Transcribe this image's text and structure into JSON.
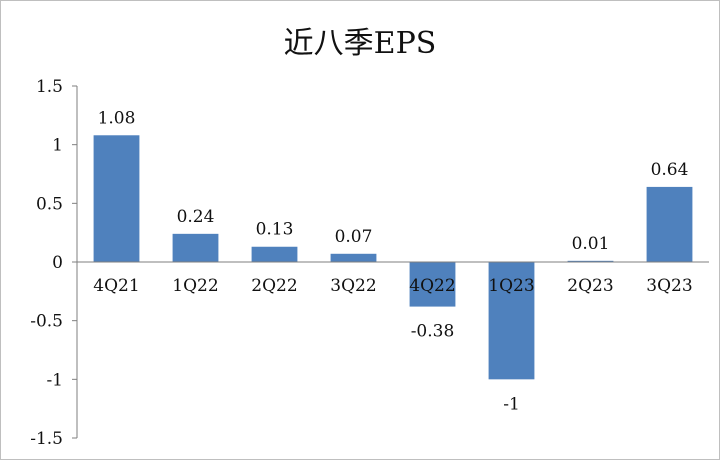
{
  "chart_data": {
    "type": "bar",
    "title": "近八季EPS",
    "xlabel": "",
    "ylabel": "",
    "categories": [
      "4Q21",
      "1Q22",
      "2Q22",
      "3Q22",
      "4Q22",
      "1Q23",
      "2Q23",
      "3Q23"
    ],
    "values": [
      1.08,
      0.24,
      0.13,
      0.07,
      -0.38,
      -1,
      0.01,
      0.64
    ],
    "data_labels": [
      "1.08",
      "0.24",
      "0.13",
      "0.07",
      "-0.38",
      "-1",
      "0.01",
      "0.64"
    ],
    "ylim": [
      -1.5,
      1.5
    ],
    "yticks": [
      1.5,
      1,
      0.5,
      0,
      -0.5,
      -1,
      -1.5
    ],
    "ytick_labels": [
      "1.5",
      "1",
      "0.5",
      "0",
      "-0.5",
      "-1",
      "-1.5"
    ],
    "grid": false,
    "legend": "none",
    "bar_color": "#4f81bd",
    "axis_color": "#7f7f7f"
  }
}
